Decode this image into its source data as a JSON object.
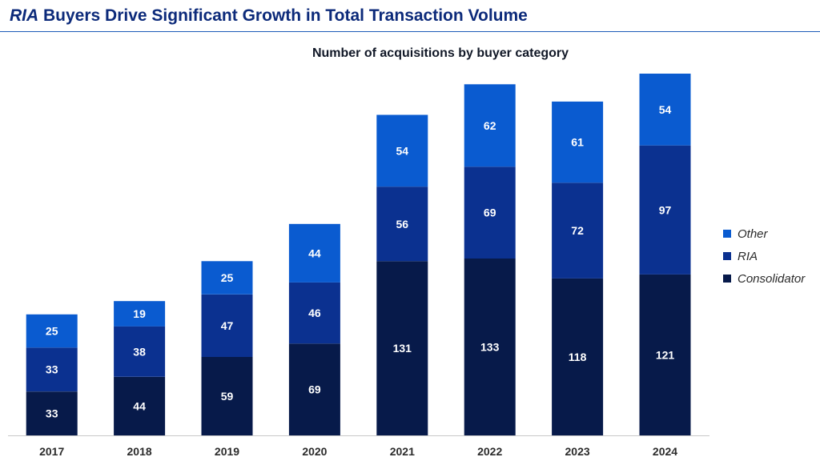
{
  "header": {
    "title_em": "RIA",
    "title_rest": " Buyers Drive Significant Growth in Total Transaction Volume"
  },
  "colors": {
    "other": "#0a5bd0",
    "ria": "#0b3190",
    "consolidator": "#071a4a",
    "header_text": "#0c2a7a",
    "rule": "#1d5bb8"
  },
  "chart_data": {
    "type": "bar",
    "stacked": true,
    "title": "Number of acquisitions by buyer category",
    "xlabel": "",
    "ylabel": "",
    "categories": [
      "2017",
      "2018",
      "2019",
      "2020",
      "2021",
      "2022",
      "2023",
      "2024"
    ],
    "series": [
      {
        "name": "Consolidator",
        "values": [
          33,
          44,
          59,
          69,
          131,
          133,
          118,
          121
        ]
      },
      {
        "name": "RIA",
        "values": [
          33,
          38,
          47,
          46,
          56,
          69,
          72,
          97
        ]
      },
      {
        "name": "Other",
        "values": [
          25,
          19,
          25,
          44,
          54,
          62,
          61,
          54
        ]
      }
    ],
    "ylim": [
      0,
      272
    ],
    "grid": false,
    "legend_position": "right"
  },
  "legend": [
    {
      "label": "Other",
      "color_key": "other"
    },
    {
      "label": "RIA",
      "color_key": "ria"
    },
    {
      "label": "Consolidator",
      "color_key": "consolidator"
    }
  ]
}
